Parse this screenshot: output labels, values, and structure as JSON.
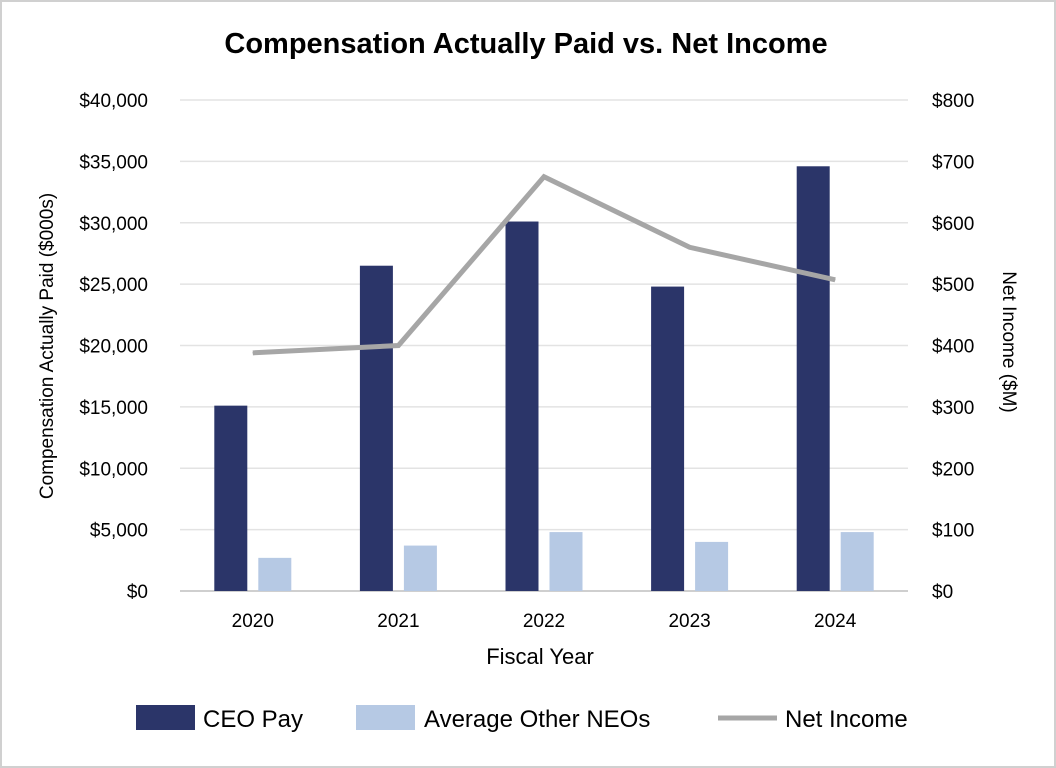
{
  "chart_data": {
    "type": "bar",
    "title": "Compensation Actually Paid vs. Net Income",
    "xlabel": "Fiscal Year",
    "ylabel": "Compensation Actually Paid ($000s)",
    "y2label": "Net Income ($M)",
    "categories": [
      "2020",
      "2021",
      "2022",
      "2023",
      "2024"
    ],
    "ylim": [
      0,
      40000
    ],
    "y2lim": [
      0,
      800
    ],
    "yticks": [
      0,
      5000,
      10000,
      15000,
      20000,
      25000,
      30000,
      35000,
      40000
    ],
    "ytick_labels": [
      "$0",
      "$5,000",
      "$10,000",
      "$15,000",
      "$20,000",
      "$25,000",
      "$30,000",
      "$35,000",
      "$40,000"
    ],
    "y2ticks": [
      0,
      100,
      200,
      300,
      400,
      500,
      600,
      700,
      800
    ],
    "y2tick_labels": [
      "$0",
      "$100",
      "$200",
      "$300",
      "$400",
      "$500",
      "$600",
      "$700",
      "$800"
    ],
    "grid": true,
    "legend_position": "bottom",
    "series": [
      {
        "name": "CEO Pay",
        "type": "bar",
        "axis": "left",
        "color": "#2b3569",
        "values": [
          15100,
          26500,
          30100,
          24800,
          34600
        ]
      },
      {
        "name": "Average Other NEOs",
        "type": "bar",
        "axis": "left",
        "color": "#b6c9e4",
        "values": [
          2700,
          3700,
          4800,
          4000,
          4800
        ]
      },
      {
        "name": "Net Income",
        "type": "line",
        "axis": "right",
        "color": "#a6a6a6",
        "values": [
          388,
          400,
          675,
          560,
          507
        ]
      }
    ]
  }
}
